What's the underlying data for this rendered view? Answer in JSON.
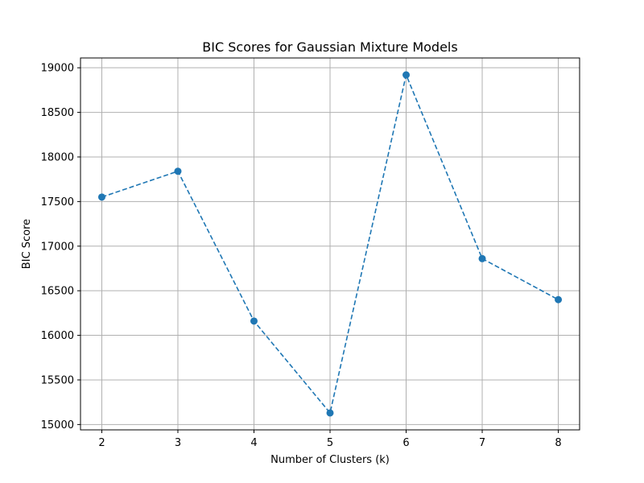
{
  "chart_data": {
    "type": "line",
    "title": "BIC Scores for Gaussian Mixture Models",
    "xlabel": "Number of Clusters (k)",
    "ylabel": "BIC Score",
    "x": [
      2,
      3,
      4,
      5,
      6,
      7,
      8
    ],
    "y": [
      17550,
      17840,
      16160,
      15130,
      18920,
      16860,
      16400
    ],
    "xticks": [
      2,
      3,
      4,
      5,
      6,
      7,
      8
    ],
    "yticks": [
      15000,
      15500,
      16000,
      16500,
      17000,
      17500,
      18000,
      18500,
      19000
    ],
    "xlim": [
      1.72,
      8.28
    ],
    "ylim": [
      14940,
      19110
    ],
    "grid": true,
    "line_style": "dashed",
    "marker": "circle",
    "color": "#1f77b4"
  }
}
